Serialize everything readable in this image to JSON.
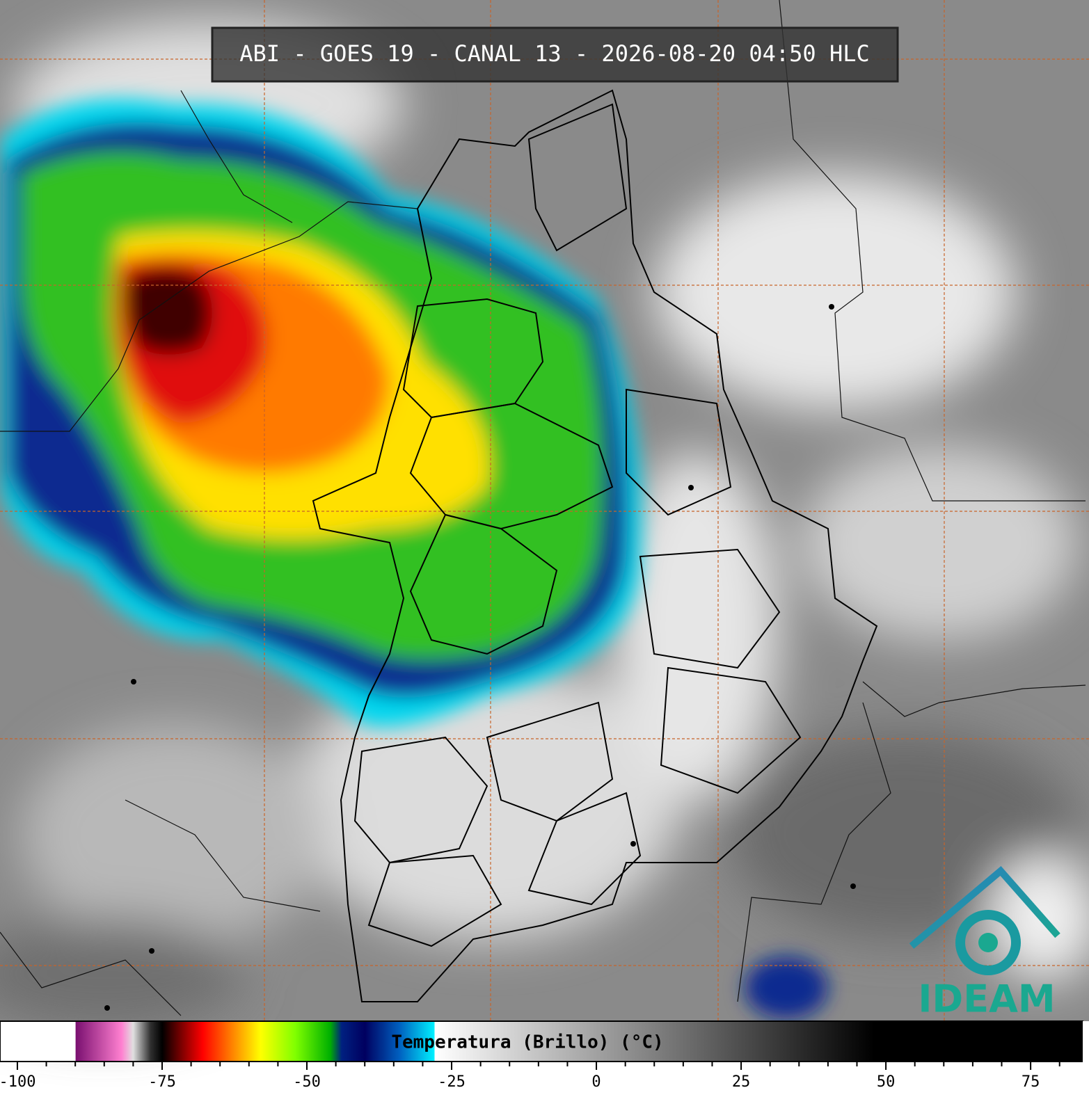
{
  "header": {
    "title": "ABI - GOES 19 - CANAL 13 - 2026-08-20 04:50 HLC"
  },
  "colorbar": {
    "label": "Temperatura (Brillo) (°C)",
    "xlim": [
      -103,
      84
    ],
    "ticks": [
      -100,
      -75,
      -50,
      -25,
      0,
      25,
      50,
      75
    ],
    "minor_ticks": [
      -95,
      -90,
      -85,
      -80,
      -70,
      -65,
      -60,
      -55,
      -45,
      -40,
      -35,
      -30,
      -20,
      -15,
      -10,
      -5,
      5,
      10,
      15,
      20,
      30,
      35,
      40,
      45,
      55,
      60,
      65,
      70,
      80
    ],
    "stops": [
      {
        "value": -103,
        "color": "#ffffff"
      },
      {
        "value": -90,
        "color": "#ffffff"
      },
      {
        "value": -89.9,
        "color": "#7a1070"
      },
      {
        "value": -82,
        "color": "#ff80d0"
      },
      {
        "value": -80,
        "color": "#e0e0e0"
      },
      {
        "value": -77,
        "color": "#303030"
      },
      {
        "value": -75,
        "color": "#000000"
      },
      {
        "value": -72,
        "color": "#700000"
      },
      {
        "value": -68,
        "color": "#ff0000"
      },
      {
        "value": -63,
        "color": "#ff8000"
      },
      {
        "value": -58,
        "color": "#ffff00"
      },
      {
        "value": -52,
        "color": "#80ff00"
      },
      {
        "value": -46,
        "color": "#00b000"
      },
      {
        "value": -44,
        "color": "#002080"
      },
      {
        "value": -40,
        "color": "#000060"
      },
      {
        "value": -34,
        "color": "#0060c0"
      },
      {
        "value": -28,
        "color": "#00f0ff"
      },
      {
        "value": -27.9,
        "color": "#ffffff"
      },
      {
        "value": 48,
        "color": "#000000"
      },
      {
        "value": 84,
        "color": "#000000"
      }
    ]
  },
  "logo": {
    "text": "IDEAM"
  }
}
